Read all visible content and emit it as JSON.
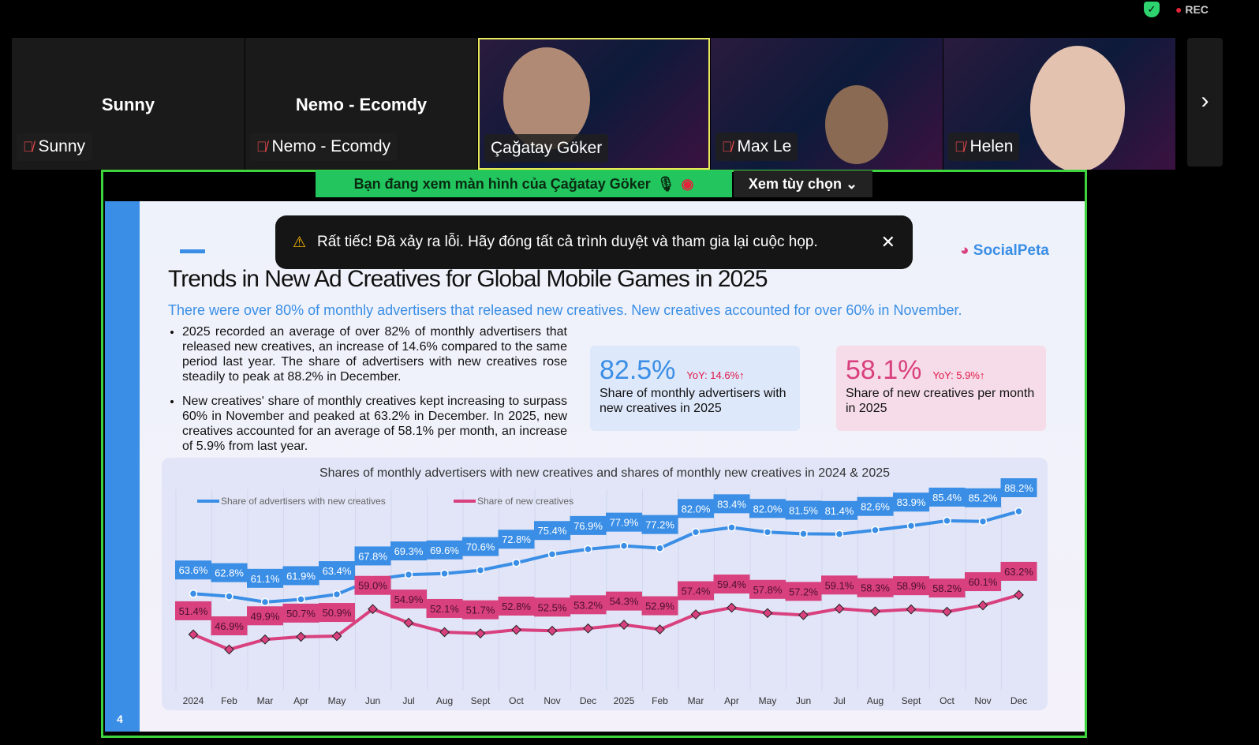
{
  "topbar": {
    "rec_label": "REC",
    "security_icon": "shield-check-icon"
  },
  "participants": [
    {
      "name": "Sunny",
      "display": "Sunny",
      "muted": true,
      "video": false
    },
    {
      "name": "Nemo - Ecomdy",
      "display": "Nemo - Ecomdy",
      "muted": true,
      "video": false
    },
    {
      "name": "Çağatay Göker",
      "muted": false,
      "video": true,
      "active_speaker": true
    },
    {
      "name": "Max Le",
      "muted": true,
      "video": true
    },
    {
      "name": "Helen",
      "muted": true,
      "video": true
    }
  ],
  "share_banner": {
    "text": "Bạn đang xem màn hình của  Çağatay Göker",
    "options_label": "Xem tùy chọn"
  },
  "error_toast": {
    "message": "Rất tiếc! Đã xảy ra lỗi. Hãy đóng tất cả trình duyệt và tham gia lại cuộc họp."
  },
  "slide": {
    "brand": "SocialPeta",
    "title": "Trends in New Ad Creatives for Global Mobile Games in 2025",
    "subtitle": "There were over 80% of monthly advertisers that released new creatives. New creatives accounted for over 60% in November.",
    "bullets": [
      "2025 recorded an average of over 82% of monthly advertisers that released new creatives, an increase of 14.6% compared to the same period last year. The share of advertisers with new creatives rose steadily to peak at 88.2% in December.",
      "New creatives' share of monthly creatives kept increasing to surpass 60% in November and peaked at 63.2% in December. In 2025, new creatives accounted for an average of 58.1% per month, an increase of 5.9% from last year."
    ],
    "kpis": [
      {
        "value": "82.5%",
        "yoy": "YoY: 14.6%↑",
        "desc": "Share of monthly advertisers with new creatives in 2025",
        "color": "#3a8ee6"
      },
      {
        "value": "58.1%",
        "yoy": "YoY: 5.9%↑",
        "desc": "Share of new creatives per month in 2025",
        "color": "#d9407e"
      }
    ],
    "page_number": "4"
  },
  "chart_data": {
    "type": "line",
    "title": "Shares of monthly advertisers with new creatives and shares of monthly new creatives in 2024 & 2025",
    "categories": [
      "2024",
      "Feb",
      "Mar",
      "Apr",
      "May",
      "Jun",
      "Jul",
      "Aug",
      "Sept",
      "Oct",
      "Nov",
      "Dec",
      "2025",
      "Feb",
      "Mar",
      "Apr",
      "May",
      "Jun",
      "Jul",
      "Aug",
      "Sept",
      "Oct",
      "Nov",
      "Dec"
    ],
    "series": [
      {
        "name": "Share of advertisers with new creatives",
        "color": "#3a8ee6",
        "values": [
          63.6,
          62.8,
          61.1,
          61.9,
          63.4,
          67.8,
          69.3,
          69.6,
          70.6,
          72.8,
          75.4,
          76.9,
          77.9,
          77.2,
          82.0,
          83.4,
          82.0,
          81.5,
          81.4,
          82.6,
          83.9,
          85.4,
          85.2,
          88.2
        ]
      },
      {
        "name": "Share of new creatives",
        "color": "#d9407e",
        "values": [
          51.4,
          46.9,
          49.9,
          50.7,
          50.9,
          59.0,
          54.9,
          52.1,
          51.7,
          52.8,
          52.5,
          53.2,
          54.3,
          52.9,
          57.4,
          59.4,
          57.8,
          57.2,
          59.1,
          58.3,
          58.9,
          58.2,
          60.1,
          63.2
        ]
      }
    ],
    "unit": "%",
    "legend": "top-left",
    "grid": "vertical"
  },
  "nav": {
    "next_icon": "chevron-right-icon"
  }
}
